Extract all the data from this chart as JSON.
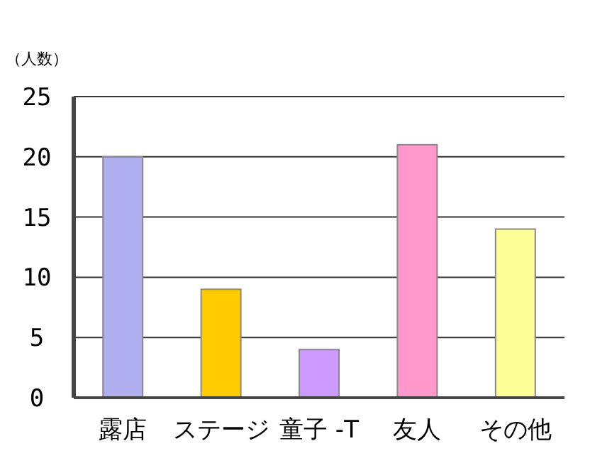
{
  "chart_data": {
    "type": "bar",
    "ylabel": "（人数）",
    "categories": [
      "露店",
      "ステージ",
      "童子 -T",
      "友人",
      "その他"
    ],
    "values": [
      20,
      9,
      4,
      21,
      14
    ],
    "colors": [
      "#b0b0f0",
      "#ffcc00",
      "#cc99ff",
      "#ff99cc",
      "#ffff99"
    ],
    "ylim": [
      0,
      25
    ],
    "yticks": [
      0,
      5,
      10,
      15,
      20,
      25
    ],
    "grid": "y"
  }
}
